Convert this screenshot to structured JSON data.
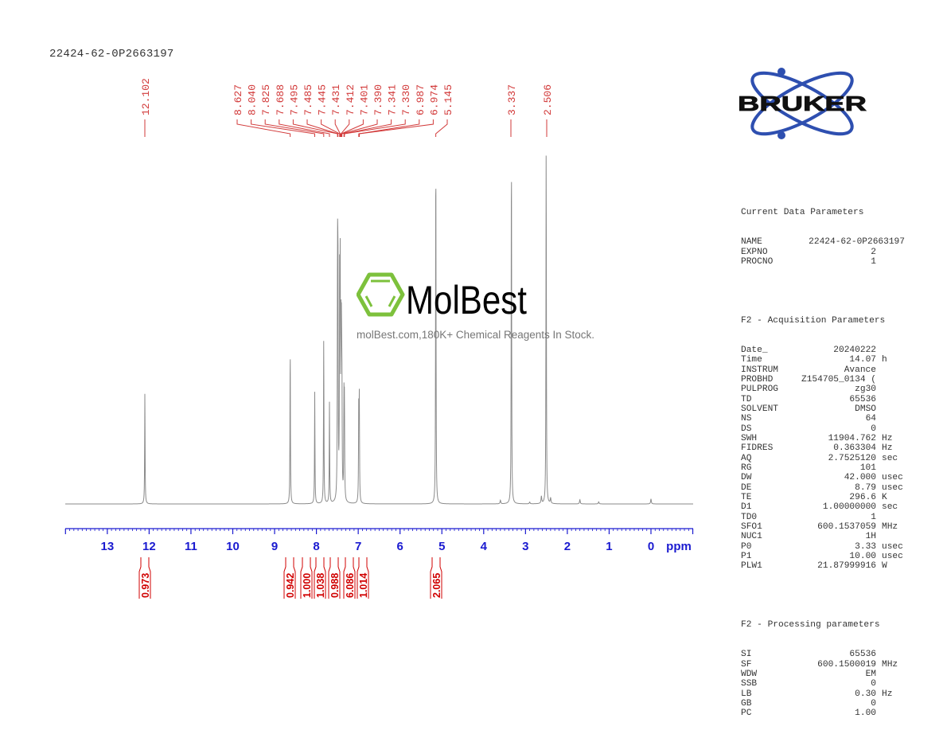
{
  "sample_name": "22424-62-0P2663197",
  "watermark": {
    "brand": "MolBest",
    "tagline": "molBest.com,180K+ Chemical Reagents In Stock.",
    "accent": "#7dc13c"
  },
  "logo": {
    "text": "BRUKER",
    "orbit_color": "#2e4fb0"
  },
  "colors": {
    "axis": "#1a1ad0",
    "peak_labels": "#d23a3a",
    "integrals": "#d00000",
    "spectrum": "#888888"
  },
  "chart_data": {
    "type": "line",
    "title": "22424-62-0P2663197",
    "xlabel": "ppm",
    "ylabel": "",
    "x_axis": {
      "range": [
        14,
        -1
      ],
      "reversed": true,
      "ticks": [
        13,
        12,
        11,
        10,
        9,
        8,
        7,
        6,
        5,
        4,
        3,
        2,
        1,
        0
      ],
      "unit": "ppm"
    },
    "grid": false,
    "peaks": [
      {
        "ppm": 12.102,
        "rel_height": 0.31
      },
      {
        "ppm": 8.627,
        "rel_height": 0.44
      },
      {
        "ppm": 8.04,
        "rel_height": 0.31
      },
      {
        "ppm": 7.825,
        "rel_height": 0.46
      },
      {
        "ppm": 7.688,
        "rel_height": 0.28
      },
      {
        "ppm": 7.495,
        "rel_height": 0.62
      },
      {
        "ppm": 7.485,
        "rel_height": 0.6
      },
      {
        "ppm": 7.445,
        "rel_height": 0.56
      },
      {
        "ppm": 7.431,
        "rel_height": 0.58
      },
      {
        "ppm": 7.412,
        "rel_height": 0.38
      },
      {
        "ppm": 7.401,
        "rel_height": 0.37
      },
      {
        "ppm": 7.39,
        "rel_height": 0.3
      },
      {
        "ppm": 7.341,
        "rel_height": 0.26
      },
      {
        "ppm": 7.33,
        "rel_height": 0.25
      },
      {
        "ppm": 6.987,
        "rel_height": 0.27
      },
      {
        "ppm": 6.974,
        "rel_height": 0.27
      },
      {
        "ppm": 5.145,
        "rel_height": 1.0
      },
      {
        "ppm": 3.337,
        "rel_height": 1.0
      },
      {
        "ppm": 2.506,
        "rel_height": 1.0
      }
    ],
    "peak_labels": [
      "12.102",
      "8.627",
      "8.040",
      "7.825",
      "7.688",
      "7.495",
      "7.485",
      "7.445",
      "7.431",
      "7.412",
      "7.401",
      "7.390",
      "7.341",
      "7.330",
      "6.987",
      "6.974",
      "5.145",
      "3.337",
      "2.506"
    ],
    "integrals": [
      {
        "center_ppm": 12.1,
        "value": "0.973"
      },
      {
        "center_ppm": 8.63,
        "value": "0.942"
      },
      {
        "center_ppm": 8.04,
        "value": "1.000"
      },
      {
        "center_ppm": 7.83,
        "value": "1.038"
      },
      {
        "center_ppm": 7.69,
        "value": "0.988"
      },
      {
        "center_ppm": 7.45,
        "value": "6.086"
      },
      {
        "center_ppm": 6.98,
        "value": "1.014"
      },
      {
        "center_ppm": 5.15,
        "value": "2.065"
      }
    ]
  },
  "parameters": {
    "current": {
      "title": "Current Data Parameters",
      "rows": [
        {
          "k": "NAME",
          "v": "22424-62-0P2663197",
          "u": ""
        },
        {
          "k": "EXPNO",
          "v": "2",
          "u": ""
        },
        {
          "k": "PROCNO",
          "v": "1",
          "u": ""
        }
      ]
    },
    "acquisition": {
      "title": "F2 - Acquisition Parameters",
      "rows": [
        {
          "k": "Date_",
          "v": "20240222",
          "u": ""
        },
        {
          "k": "Time",
          "v": "14.07",
          "u": "h"
        },
        {
          "k": "INSTRUM",
          "v": "Avance",
          "u": ""
        },
        {
          "k": "PROBHD",
          "v": "Z154705_0134 (",
          "u": ""
        },
        {
          "k": "PULPROG",
          "v": "zg30",
          "u": ""
        },
        {
          "k": "TD",
          "v": "65536",
          "u": ""
        },
        {
          "k": "SOLVENT",
          "v": "DMSO",
          "u": ""
        },
        {
          "k": "NS",
          "v": "64",
          "u": ""
        },
        {
          "k": "DS",
          "v": "0",
          "u": ""
        },
        {
          "k": "SWH",
          "v": "11904.762",
          "u": "Hz"
        },
        {
          "k": "FIDRES",
          "v": "0.363304",
          "u": "Hz"
        },
        {
          "k": "AQ",
          "v": "2.7525120",
          "u": "sec"
        },
        {
          "k": "RG",
          "v": "101",
          "u": ""
        },
        {
          "k": "DW",
          "v": "42.000",
          "u": "usec"
        },
        {
          "k": "DE",
          "v": "8.79",
          "u": "usec"
        },
        {
          "k": "TE",
          "v": "296.6",
          "u": "K"
        },
        {
          "k": "D1",
          "v": "1.00000000",
          "u": "sec"
        },
        {
          "k": "TD0",
          "v": "1",
          "u": ""
        },
        {
          "k": "SFO1",
          "v": "600.1537059",
          "u": "MHz"
        },
        {
          "k": "NUC1",
          "v": "1H",
          "u": ""
        },
        {
          "k": "P0",
          "v": "3.33",
          "u": "usec"
        },
        {
          "k": "P1",
          "v": "10.00",
          "u": "usec"
        },
        {
          "k": "PLW1",
          "v": "21.87999916",
          "u": "W"
        }
      ]
    },
    "processing": {
      "title": "F2 - Processing parameters",
      "rows": [
        {
          "k": "SI",
          "v": "65536",
          "u": ""
        },
        {
          "k": "SF",
          "v": "600.1500019",
          "u": "MHz"
        },
        {
          "k": "WDW",
          "v": "EM",
          "u": ""
        },
        {
          "k": "SSB",
          "v": "0",
          "u": ""
        },
        {
          "k": "LB",
          "v": "0.30",
          "u": "Hz"
        },
        {
          "k": "GB",
          "v": "0",
          "u": ""
        },
        {
          "k": "PC",
          "v": "1.00",
          "u": ""
        }
      ]
    }
  }
}
